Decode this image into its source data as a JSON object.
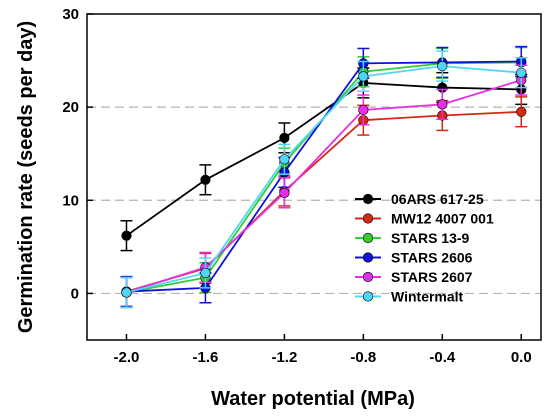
{
  "chart_data": {
    "type": "line",
    "xlabel": "Water potential (MPa)",
    "ylabel": "Germination rate (seeds per day)",
    "x": [
      -2.0,
      -1.6,
      -1.2,
      -0.8,
      -0.4,
      0.0
    ],
    "x_tick_labels": [
      "-2.0",
      "-1.6",
      "-1.2",
      "-0.8",
      "-0.4",
      "0.0"
    ],
    "xlim": [
      -2.2,
      0.1
    ],
    "ylim": [
      -5,
      30
    ],
    "y_ticks": [
      0,
      10,
      20,
      30
    ],
    "y_tick_labels": [
      "0",
      "10",
      "20",
      "30"
    ],
    "grid": "dashed horizontal at 0, 10, 20",
    "legend_position": "right",
    "series": [
      {
        "name": "06ARS 617-25",
        "color": "#000000",
        "values": [
          6.2,
          12.2,
          16.7,
          22.6,
          22.1,
          21.9
        ],
        "errors": [
          1.6,
          1.6,
          1.6,
          1.6,
          1.6,
          1.6
        ]
      },
      {
        "name": "MW12 4007 001",
        "color": "#d42a12",
        "values": [
          0.2,
          2.7,
          11.0,
          18.6,
          19.1,
          19.5
        ],
        "errors": [
          1.6,
          1.6,
          1.6,
          1.6,
          1.6,
          1.6
        ]
      },
      {
        "name": "STARS 13-9",
        "color": "#33cc33",
        "values": [
          0.1,
          1.7,
          14.0,
          23.8,
          24.7,
          24.8
        ],
        "errors": [
          1.6,
          1.6,
          1.6,
          1.6,
          1.6,
          1.6
        ]
      },
      {
        "name": "STARS 2606",
        "color": "#1010dd",
        "values": [
          0.2,
          0.6,
          13.0,
          24.7,
          24.8,
          24.9
        ],
        "errors": [
          1.6,
          1.6,
          1.6,
          1.6,
          1.6,
          1.6
        ]
      },
      {
        "name": "STARS 2607",
        "color": "#e62ee6",
        "values": [
          0.1,
          2.8,
          10.8,
          19.7,
          20.3,
          22.9
        ],
        "errors": [
          1.6,
          1.6,
          1.6,
          1.6,
          1.6,
          1.6
        ]
      },
      {
        "name": "Wintermalt",
        "color": "#4fd6f7",
        "values": [
          0.1,
          2.2,
          14.4,
          23.3,
          24.4,
          23.7
        ],
        "errors": [
          1.6,
          1.6,
          1.6,
          1.6,
          1.6,
          1.6
        ]
      }
    ]
  }
}
